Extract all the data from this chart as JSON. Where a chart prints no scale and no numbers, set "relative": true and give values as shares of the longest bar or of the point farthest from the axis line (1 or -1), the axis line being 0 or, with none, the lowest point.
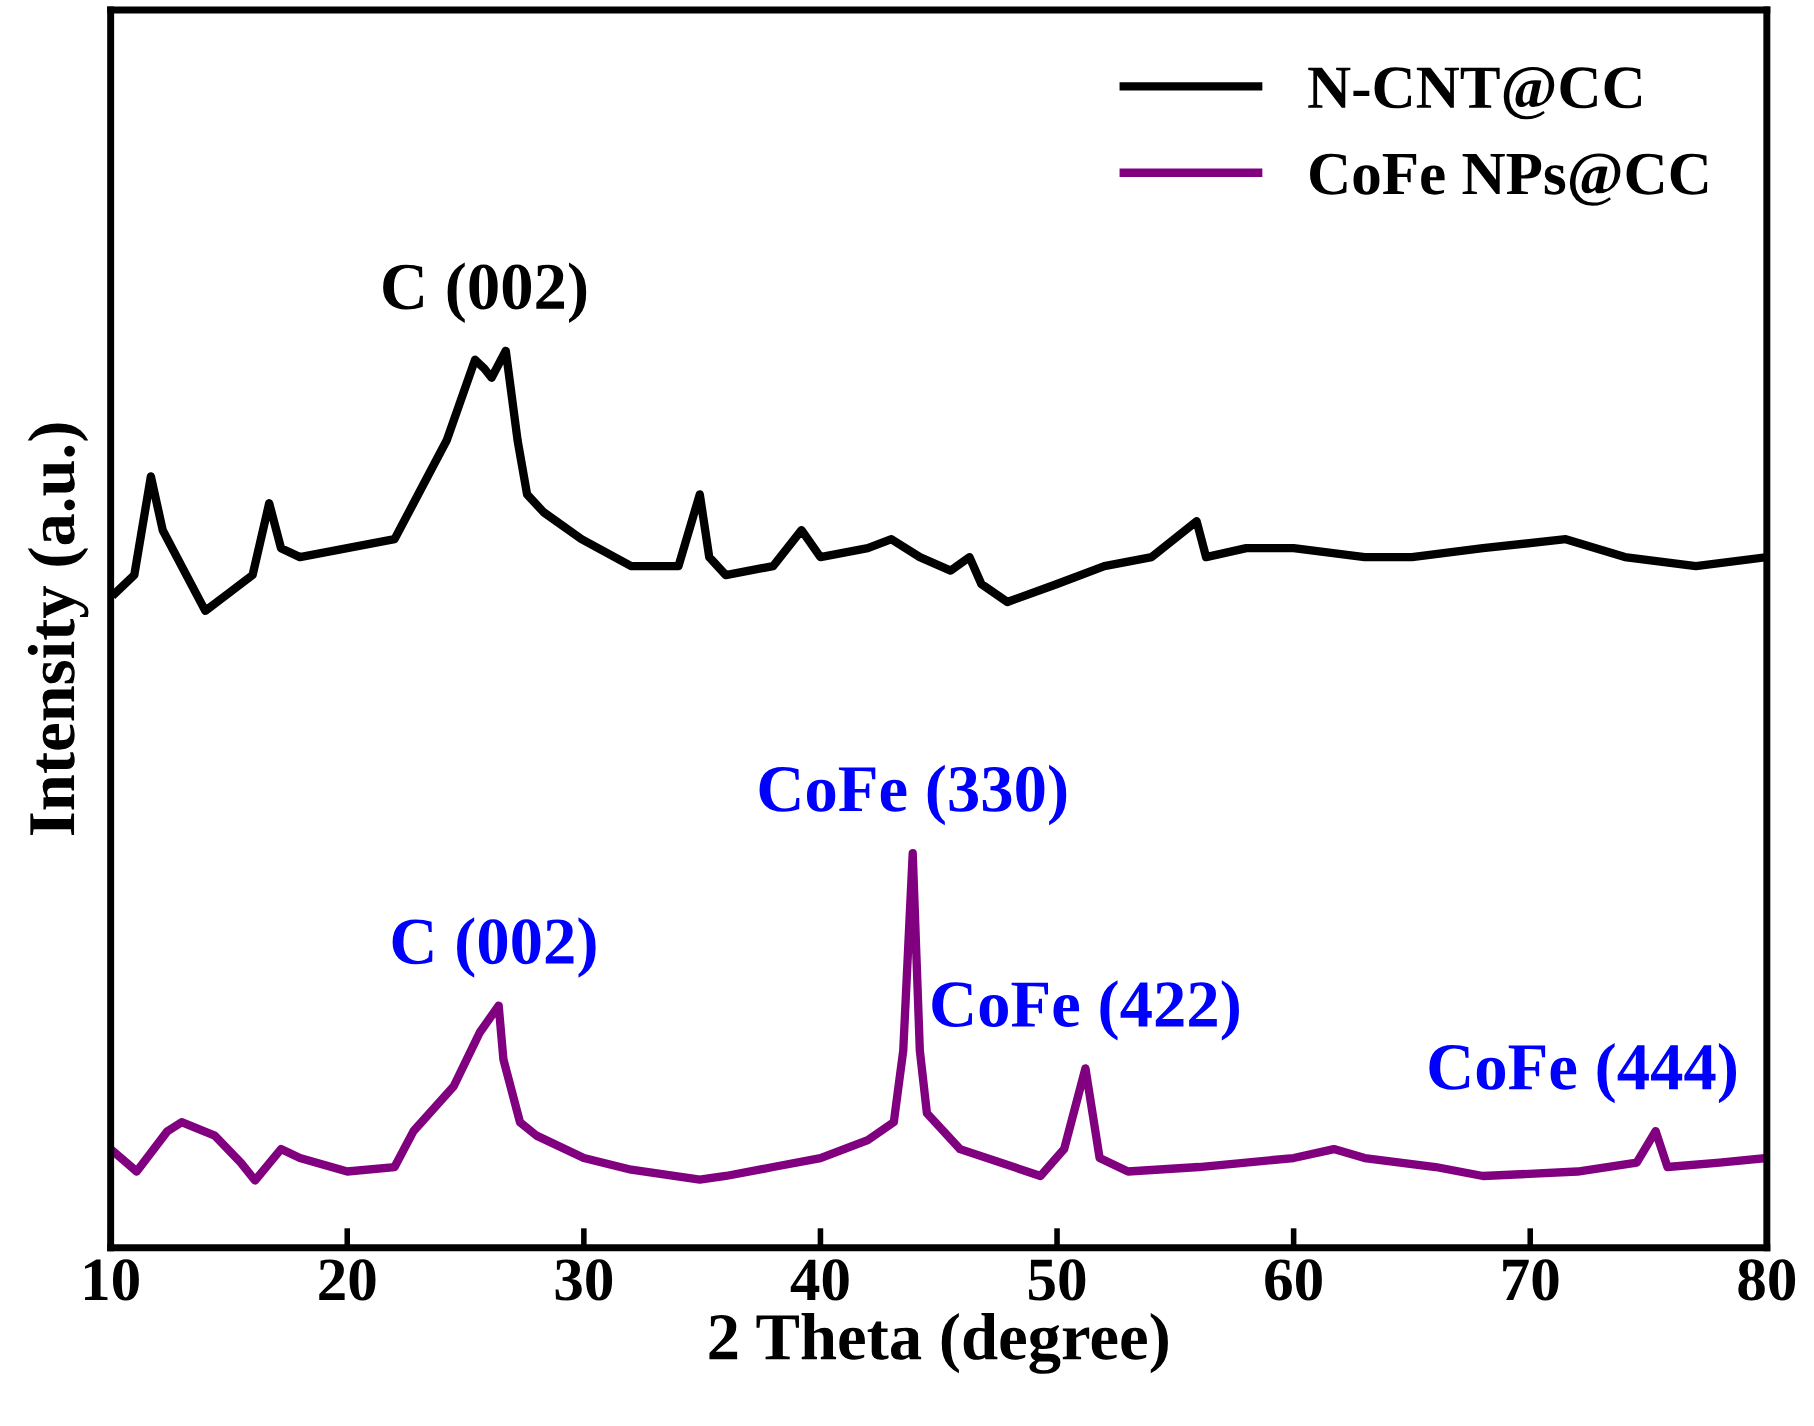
{
  "chart_data": {
    "type": "line",
    "relative": true,
    "xlabel": "2 Theta (degree)",
    "ylabel": "Intensity (a.u.)",
    "xlim": [
      10,
      80
    ],
    "xticks": [
      10,
      20,
      30,
      40,
      50,
      60,
      70,
      80
    ],
    "legend": "top right",
    "grid": false,
    "line_style": "solid",
    "marker": "none",
    "tick_labels": "x",
    "series": [
      {
        "name": "N-CNT@CC",
        "color": "#000000",
        "x": [
          10.2,
          11.0,
          11.7,
          12.2,
          13.0,
          14.0,
          15.0,
          16.0,
          16.7,
          17.2,
          18,
          20,
          22,
          22.8,
          24.2,
          25.4,
          25.8,
          26.1,
          26.7,
          27.2,
          27.6,
          28.3,
          29.9,
          32,
          34,
          34.9,
          35.3,
          36,
          38,
          39.2,
          40,
          42,
          43,
          44.2,
          45.5,
          46.3,
          46.8,
          47.9,
          50,
          52,
          54,
          55.9,
          56.3,
          58,
          60,
          63,
          65,
          68,
          71.5,
          74,
          77,
          80
        ],
        "values": [
          0.73,
          0.75,
          0.86,
          0.8,
          0.76,
          0.71,
          0.73,
          0.75,
          0.83,
          0.78,
          0.77,
          0.78,
          0.79,
          0.83,
          0.9,
          0.99,
          0.98,
          0.97,
          1.0,
          0.9,
          0.84,
          0.82,
          0.79,
          0.76,
          0.76,
          0.84,
          0.77,
          0.75,
          0.76,
          0.8,
          0.77,
          0.78,
          0.79,
          0.77,
          0.755,
          0.77,
          0.74,
          0.72,
          0.74,
          0.76,
          0.77,
          0.81,
          0.77,
          0.78,
          0.78,
          0.77,
          0.77,
          0.78,
          0.79,
          0.77,
          0.76,
          0.77
        ]
      },
      {
        "name": "CoFe NPs@CC",
        "color": "#800080",
        "x": [
          10,
          11.1,
          12.4,
          13.0,
          14.4,
          15.5,
          16.1,
          17.2,
          18,
          20,
          22,
          22.8,
          24.5,
          25.6,
          26.4,
          26.6,
          27.3,
          28,
          30,
          32,
          34.9,
          36,
          38,
          40,
          42,
          43.1,
          43.5,
          43.9,
          44.2,
          44.5,
          45.9,
          49.3,
          50.3,
          51.2,
          51.8,
          53,
          56,
          60,
          61.7,
          63,
          66,
          68,
          72,
          74.5,
          75.3,
          75.8,
          78,
          80
        ],
        "values": [
          0.11,
          0.085,
          0.13,
          0.14,
          0.125,
          0.095,
          0.075,
          0.11,
          0.1,
          0.085,
          0.09,
          0.13,
          0.18,
          0.24,
          0.27,
          0.21,
          0.14,
          0.125,
          0.1,
          0.087,
          0.076,
          0.08,
          0.09,
          0.1,
          0.12,
          0.14,
          0.22,
          0.44,
          0.22,
          0.15,
          0.11,
          0.08,
          0.11,
          0.2,
          0.1,
          0.085,
          0.09,
          0.1,
          0.11,
          0.1,
          0.09,
          0.08,
          0.085,
          0.095,
          0.13,
          0.09,
          0.095,
          0.1
        ]
      }
    ],
    "annotations": [
      {
        "text": "C (002)",
        "x": 25.8,
        "y": 1.0
      },
      {
        "text": "C (002)",
        "x": 26.2,
        "y": 0.27
      },
      {
        "text": "CoFe (330)",
        "x": 43.9,
        "y": 0.44
      },
      {
        "text": "CoFe (422)",
        "x": 51.2,
        "y": 0.2
      },
      {
        "text": "CoFe (444)",
        "x": 75.3,
        "y": 0.13
      }
    ]
  }
}
